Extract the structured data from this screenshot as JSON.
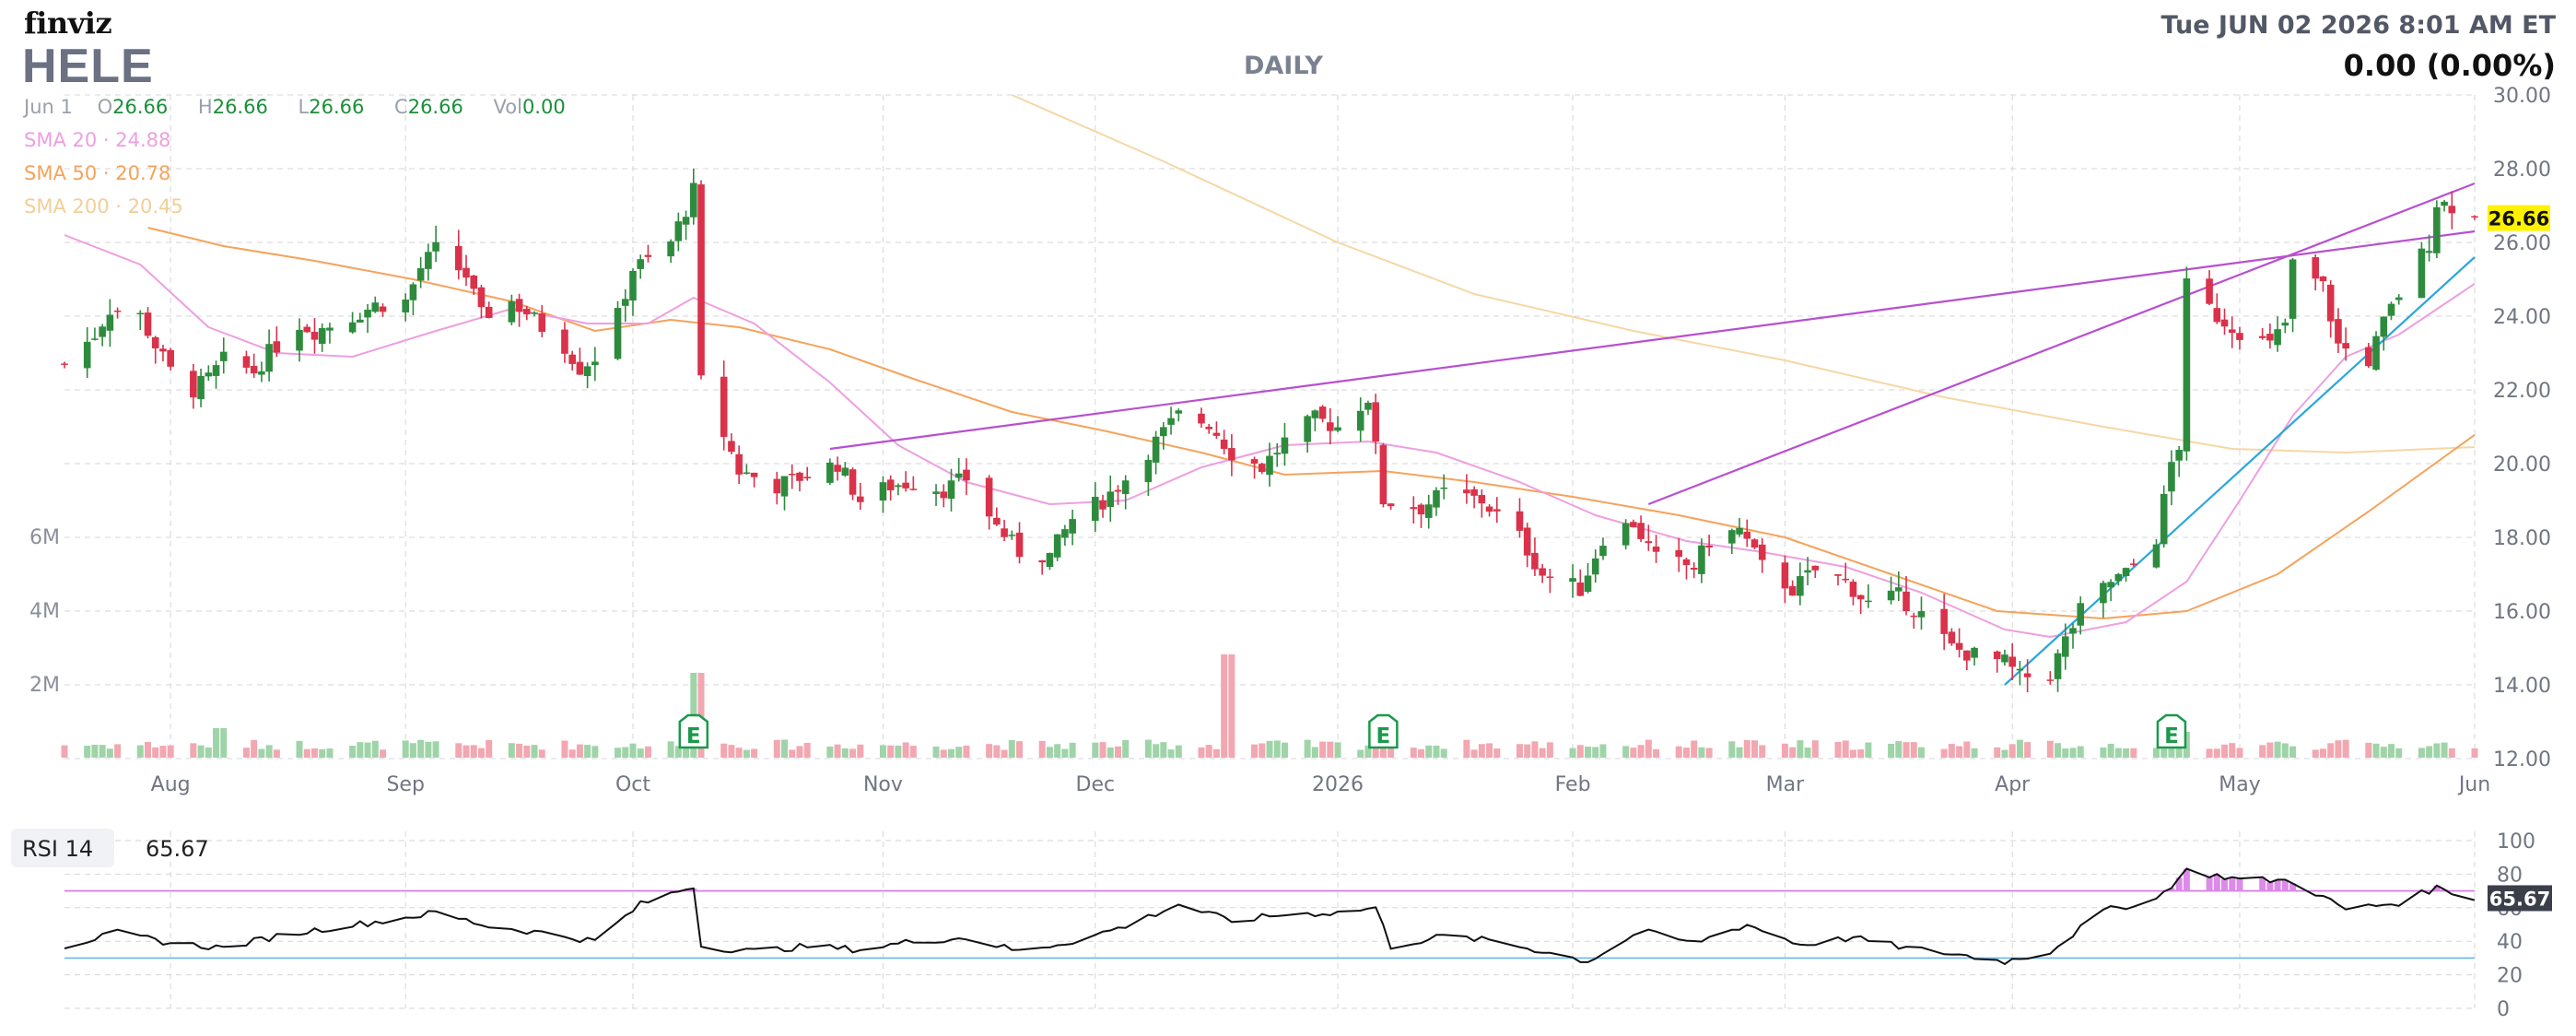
{
  "header": {
    "logo": "finviz",
    "ticker": "HELE",
    "timeframe": "DAILY",
    "datetime": "Tue JUN 02 2026 8:01 AM ET",
    "change": "0.00 (0.00%)"
  },
  "ohlc": {
    "date": "Jun 1",
    "open_label": "O",
    "open": "26.66",
    "high_label": "H",
    "high": "26.66",
    "low_label": "L",
    "low": "26.66",
    "close_label": "C",
    "close": "26.66",
    "vol_label": "Vol",
    "vol": "0.00"
  },
  "indicators": [
    {
      "name": "SMA 20",
      "value": "24.88",
      "color": "#ee9fe0"
    },
    {
      "name": "SMA 50",
      "value": "20.78",
      "color": "#f5a35b"
    },
    {
      "name": "SMA 200",
      "value": "20.45",
      "color": "#f6d7a4"
    }
  ],
  "colors": {
    "up": "#2e8b3e",
    "down": "#d9324a",
    "vol_up": "#9fd4a8",
    "vol_down": "#f2a7b1",
    "trend_purple": "#b84fd0",
    "trend_blue": "#2aa6dd",
    "price_tag": "#fff200",
    "rsi_tag": "#3b3f4a",
    "rsi_line": "#111111",
    "rsi_upper": "#d274e6",
    "rsi_lower": "#69b8ea",
    "rsi_fill": "#dc8be8",
    "earnings": "#1a9a4a"
  },
  "chart_data": [
    {
      "type": "candlestick",
      "title": "HELE",
      "timeframe": "DAILY",
      "x_range": [
        "2025-07-18",
        "2026-06-01"
      ],
      "ylim": [
        12,
        30
      ],
      "y_ticks": [
        "12.00",
        "14.00",
        "16.00",
        "18.00",
        "20.00",
        "22.00",
        "24.00",
        "26.00",
        "28.00",
        "30.00"
      ],
      "x_ticks": [
        "Aug",
        "Sep",
        "Oct",
        "Nov",
        "Dec",
        "2026",
        "Feb",
        "Mar",
        "Apr",
        "May",
        "Jun"
      ],
      "last_price": "26.66",
      "close_path": [
        [
          "2025-07-18",
          22.7
        ],
        [
          "2025-07-22",
          23.5
        ],
        [
          "2025-07-24",
          24.2
        ],
        [
          "2025-07-28",
          24.0
        ],
        [
          "2025-07-30",
          23.2
        ],
        [
          "2025-08-01",
          22.5
        ],
        [
          "2025-08-04",
          22.0
        ],
        [
          "2025-08-06",
          22.3
        ],
        [
          "2025-08-08",
          22.8
        ],
        [
          "2025-08-12",
          22.5
        ],
        [
          "2025-08-14",
          23.0
        ],
        [
          "2025-08-18",
          23.8
        ],
        [
          "2025-08-20",
          23.6
        ],
        [
          "2025-08-25",
          24.0
        ],
        [
          "2025-08-28",
          24.3
        ],
        [
          "2025-09-01",
          24.4
        ],
        [
          "2025-09-03",
          25.3
        ],
        [
          "2025-09-05",
          25.8
        ],
        [
          "2025-09-09",
          25.1
        ],
        [
          "2025-09-11",
          24.0
        ],
        [
          "2025-09-15",
          24.4
        ],
        [
          "2025-09-17",
          24.1
        ],
        [
          "2025-09-19",
          23.7
        ],
        [
          "2025-09-22",
          23.2
        ],
        [
          "2025-09-24",
          22.6
        ],
        [
          "2025-09-26",
          22.9
        ],
        [
          "2025-09-29",
          24.0
        ],
        [
          "2025-10-01",
          25.3
        ],
        [
          "2025-10-03",
          25.5
        ],
        [
          "2025-10-06",
          26.0
        ],
        [
          "2025-10-08",
          26.9
        ],
        [
          "2025-10-09",
          27.4
        ],
        [
          "2025-10-10",
          22.2
        ],
        [
          "2025-10-13",
          20.8
        ],
        [
          "2025-10-15",
          19.8
        ],
        [
          "2025-10-20",
          19.4
        ],
        [
          "2025-10-24",
          19.7
        ],
        [
          "2025-10-28",
          20.0
        ],
        [
          "2025-10-31",
          19.0
        ],
        [
          "2025-11-04",
          19.4
        ],
        [
          "2025-11-07",
          19.5
        ],
        [
          "2025-11-11",
          19.3
        ],
        [
          "2025-11-14",
          19.6
        ],
        [
          "2025-11-18",
          18.3
        ],
        [
          "2025-11-21",
          17.6
        ],
        [
          "2025-11-25",
          17.5
        ],
        [
          "2025-11-28",
          18.5
        ],
        [
          "2025-12-02",
          19.0
        ],
        [
          "2025-12-05",
          19.6
        ],
        [
          "2025-12-09",
          20.6
        ],
        [
          "2025-12-12",
          21.3
        ],
        [
          "2025-12-16",
          21.1
        ],
        [
          "2025-12-19",
          20.3
        ],
        [
          "2025-12-23",
          19.9
        ],
        [
          "2025-12-26",
          20.6
        ],
        [
          "2025-12-30",
          21.2
        ],
        [
          "2026-01-02",
          21.0
        ],
        [
          "2026-01-06",
          21.8
        ],
        [
          "2026-01-08",
          19.0
        ],
        [
          "2026-01-13",
          18.8
        ],
        [
          "2026-01-16",
          19.2
        ],
        [
          "2026-01-21",
          19.0
        ],
        [
          "2026-01-26",
          18.0
        ],
        [
          "2026-01-29",
          17.0
        ],
        [
          "2026-02-03",
          16.6
        ],
        [
          "2026-02-06",
          18.0
        ],
        [
          "2026-02-10",
          18.4
        ],
        [
          "2026-02-13",
          17.4
        ],
        [
          "2026-02-18",
          17.2
        ],
        [
          "2026-02-20",
          17.9
        ],
        [
          "2026-02-24",
          18.2
        ],
        [
          "2026-02-27",
          17.2
        ],
        [
          "2026-03-03",
          16.6
        ],
        [
          "2026-03-06",
          17.1
        ],
        [
          "2026-03-10",
          16.8
        ],
        [
          "2026-03-13",
          16.2
        ],
        [
          "2026-03-17",
          16.4
        ],
        [
          "2026-03-20",
          15.9
        ],
        [
          "2026-03-24",
          15.0
        ],
        [
          "2026-03-27",
          14.8
        ],
        [
          "2026-03-31",
          14.6
        ],
        [
          "2026-04-02",
          14.2
        ],
        [
          "2026-04-06",
          14.3
        ],
        [
          "2026-04-08",
          15.2
        ],
        [
          "2026-04-10",
          16.0
        ],
        [
          "2026-04-14",
          16.8
        ],
        [
          "2026-04-16",
          17.0
        ],
        [
          "2026-04-20",
          18.0
        ],
        [
          "2026-04-22",
          20.0
        ],
        [
          "2026-04-23",
          20.5
        ],
        [
          "2026-04-24",
          24.8
        ],
        [
          "2026-04-28",
          24.0
        ],
        [
          "2026-05-01",
          23.6
        ],
        [
          "2026-05-05",
          23.2
        ],
        [
          "2026-05-07",
          23.8
        ],
        [
          "2026-05-08",
          25.4
        ],
        [
          "2026-05-12",
          24.8
        ],
        [
          "2026-05-14",
          23.2
        ],
        [
          "2026-05-18",
          22.8
        ],
        [
          "2026-05-20",
          23.8
        ],
        [
          "2026-05-22",
          24.6
        ],
        [
          "2026-05-26",
          26.0
        ],
        [
          "2026-05-27",
          27.1
        ],
        [
          "2026-05-29",
          27.0
        ],
        [
          "2026-06-01",
          26.66
        ]
      ],
      "sma20": [
        [
          "2025-07-18",
          26.2
        ],
        [
          "2025-07-28",
          25.4
        ],
        [
          "2025-08-06",
          23.7
        ],
        [
          "2025-08-15",
          23.0
        ],
        [
          "2025-08-25",
          22.9
        ],
        [
          "2025-09-05",
          23.6
        ],
        [
          "2025-09-15",
          24.2
        ],
        [
          "2025-09-25",
          23.8
        ],
        [
          "2025-10-03",
          23.8
        ],
        [
          "2025-10-09",
          24.5
        ],
        [
          "2025-10-17",
          23.8
        ],
        [
          "2025-10-27",
          22.2
        ],
        [
          "2025-11-05",
          20.5
        ],
        [
          "2025-11-14",
          19.5
        ],
        [
          "2025-11-25",
          18.9
        ],
        [
          "2025-12-05",
          19.0
        ],
        [
          "2025-12-15",
          19.9
        ],
        [
          "2025-12-26",
          20.5
        ],
        [
          "2026-01-06",
          20.6
        ],
        [
          "2026-01-15",
          20.3
        ],
        [
          "2026-01-26",
          19.5
        ],
        [
          "2026-02-05",
          18.6
        ],
        [
          "2026-02-17",
          17.9
        ],
        [
          "2026-02-27",
          17.6
        ],
        [
          "2026-03-10",
          17.2
        ],
        [
          "2026-03-20",
          16.5
        ],
        [
          "2026-03-31",
          15.5
        ],
        [
          "2026-04-06",
          15.3
        ],
        [
          "2026-04-16",
          15.7
        ],
        [
          "2026-04-24",
          16.8
        ],
        [
          "2026-05-01",
          19.0
        ],
        [
          "2026-05-08",
          21.3
        ],
        [
          "2026-05-15",
          22.9
        ],
        [
          "2026-05-22",
          23.5
        ],
        [
          "2026-06-01",
          24.88
        ]
      ],
      "sma50": [
        [
          "2025-07-29",
          26.4
        ],
        [
          "2025-08-08",
          25.9
        ],
        [
          "2025-08-20",
          25.5
        ],
        [
          "2025-09-02",
          25.0
        ],
        [
          "2025-09-15",
          24.4
        ],
        [
          "2025-09-26",
          23.6
        ],
        [
          "2025-10-06",
          23.9
        ],
        [
          "2025-10-15",
          23.7
        ],
        [
          "2025-10-27",
          23.1
        ],
        [
          "2025-11-07",
          22.3
        ],
        [
          "2025-11-20",
          21.4
        ],
        [
          "2025-12-02",
          20.9
        ],
        [
          "2025-12-15",
          20.3
        ],
        [
          "2025-12-26",
          19.7
        ],
        [
          "2026-01-08",
          19.8
        ],
        [
          "2026-01-20",
          19.5
        ],
        [
          "2026-02-02",
          19.1
        ],
        [
          "2026-02-16",
          18.6
        ],
        [
          "2026-03-02",
          18.0
        ],
        [
          "2026-03-16",
          17.0
        ],
        [
          "2026-03-30",
          16.0
        ],
        [
          "2026-04-13",
          15.8
        ],
        [
          "2026-04-24",
          16.0
        ],
        [
          "2026-05-06",
          17.0
        ],
        [
          "2026-05-18",
          18.7
        ],
        [
          "2026-06-01",
          20.78
        ]
      ],
      "sma200": [
        [
          "2025-11-20",
          30.0
        ],
        [
          "2025-12-10",
          28.2
        ],
        [
          "2026-01-02",
          26.0
        ],
        [
          "2026-01-20",
          24.6
        ],
        [
          "2026-02-10",
          23.6
        ],
        [
          "2026-03-02",
          22.8
        ],
        [
          "2026-03-23",
          21.8
        ],
        [
          "2026-04-13",
          21.0
        ],
        [
          "2026-04-30",
          20.4
        ],
        [
          "2026-05-15",
          20.3
        ],
        [
          "2026-06-01",
          20.45
        ]
      ],
      "trendlines": [
        {
          "color": "purple",
          "from": [
            "2025-10-27",
            20.4
          ],
          "to": [
            "2026-06-01",
            26.3
          ]
        },
        {
          "color": "purple",
          "from": [
            "2026-02-12",
            18.9
          ],
          "to": [
            "2026-06-01",
            27.6
          ]
        },
        {
          "color": "blue",
          "from": [
            "2026-03-31",
            14.0
          ],
          "to": [
            "2026-06-01",
            25.6
          ]
        }
      ],
      "earnings_markers": [
        {
          "date": "2025-10-09",
          "label": "E"
        },
        {
          "date": "2026-01-08",
          "label": "E"
        },
        {
          "date": "2026-04-22",
          "label": "E"
        }
      ],
      "volume": {
        "y_ticks": [
          "2M",
          "4M",
          "6M"
        ],
        "spikes": [
          [
            "2025-10-10",
            2.3
          ],
          [
            "2025-12-19",
            2.8
          ],
          [
            "2026-01-09",
            0.9
          ],
          [
            "2025-08-08",
            0.8
          ],
          [
            "2026-04-24",
            0.7
          ]
        ],
        "baseline_millions": 0.35
      }
    },
    {
      "type": "line",
      "title": "RSI 14",
      "current": "65.67",
      "ylim": [
        0,
        100
      ],
      "y_ticks": [
        "0",
        "20",
        "40",
        "60",
        "80",
        "100"
      ],
      "upper_level": 70,
      "lower_level": 30,
      "points": [
        [
          "2025-07-18",
          37
        ],
        [
          "2025-07-25",
          45
        ],
        [
          "2025-08-01",
          39
        ],
        [
          "2025-08-08",
          36
        ],
        [
          "2025-08-15",
          43
        ],
        [
          "2025-08-22",
          48
        ],
        [
          "2025-08-29",
          52
        ],
        [
          "2025-09-05",
          57
        ],
        [
          "2025-09-12",
          49
        ],
        [
          "2025-09-19",
          45
        ],
        [
          "2025-09-26",
          40
        ],
        [
          "2025-10-02",
          62
        ],
        [
          "2025-10-09",
          73
        ],
        [
          "2025-10-10",
          37
        ],
        [
          "2025-10-17",
          34
        ],
        [
          "2025-10-24",
          37
        ],
        [
          "2025-10-31",
          35
        ],
        [
          "2025-11-07",
          40
        ],
        [
          "2025-11-14",
          42
        ],
        [
          "2025-11-21",
          34
        ],
        [
          "2025-11-28",
          40
        ],
        [
          "2025-12-05",
          49
        ],
        [
          "2025-12-12",
          62
        ],
        [
          "2025-12-19",
          52
        ],
        [
          "2025-12-26",
          56
        ],
        [
          "2026-01-02",
          57
        ],
        [
          "2026-01-07",
          60
        ],
        [
          "2026-01-09",
          37
        ],
        [
          "2026-01-16",
          43
        ],
        [
          "2026-01-23",
          40
        ],
        [
          "2026-01-30",
          33
        ],
        [
          "2026-02-04",
          28
        ],
        [
          "2026-02-11",
          46
        ],
        [
          "2026-02-18",
          39
        ],
        [
          "2026-02-25",
          50
        ],
        [
          "2026-03-04",
          38
        ],
        [
          "2026-03-11",
          42
        ],
        [
          "2026-03-18",
          36
        ],
        [
          "2026-03-25",
          32
        ],
        [
          "2026-03-31",
          28
        ],
        [
          "2026-04-06",
          34
        ],
        [
          "2026-04-13",
          58
        ],
        [
          "2026-04-20",
          65
        ],
        [
          "2026-04-24",
          82
        ],
        [
          "2026-05-01",
          77
        ],
        [
          "2026-05-08",
          76
        ],
        [
          "2026-05-15",
          59
        ],
        [
          "2026-05-22",
          63
        ],
        [
          "2026-05-27",
          72
        ],
        [
          "2026-06-01",
          65.67
        ]
      ]
    }
  ]
}
